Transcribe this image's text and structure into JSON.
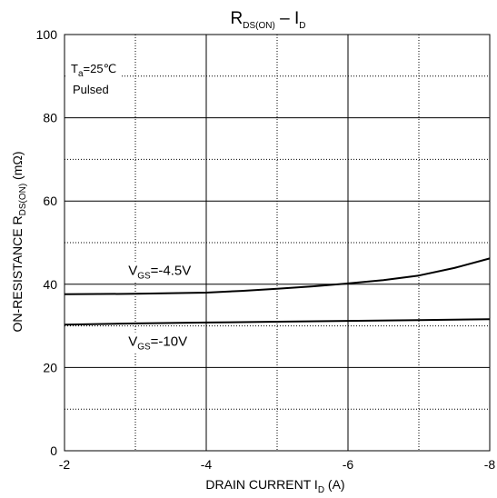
{
  "chart_data": {
    "type": "line",
    "title": {
      "main": "R",
      "sub": "DS(ON)",
      "sep": " – I",
      "sub2": "D"
    },
    "xlabel": {
      "main": "DRAIN CURRENT I",
      "sub": "D",
      "tail": " (A)"
    },
    "ylabel": {
      "main": "ON-RESISTANCE R",
      "sub": "DS(ON)",
      "tail": " (mΩ)"
    },
    "xlim": [
      -2,
      -8
    ],
    "ylim": [
      0,
      100
    ],
    "x_ticks": [
      -2,
      -4,
      -6,
      -8
    ],
    "y_ticks": [
      0,
      20,
      40,
      60,
      80,
      100
    ],
    "x_minor_dotted": [
      -3,
      -5,
      -7
    ],
    "y_minor_dotted": [
      10,
      30,
      50,
      70,
      90
    ],
    "grid": true,
    "annotations": {
      "condition_temp": {
        "main": "T",
        "sub": "a",
        "tail": "=25℃"
      },
      "condition_mode": "Pulsed"
    },
    "series": [
      {
        "name": {
          "main": "V",
          "sub": "GS",
          "tail": "=-4.5V"
        },
        "x": [
          -2,
          -3,
          -4,
          -4.5,
          -5,
          -5.5,
          -6,
          -6.5,
          -7,
          -7.5,
          -8
        ],
        "y": [
          37.6,
          37.7,
          38.0,
          38.4,
          38.9,
          39.5,
          40.2,
          41.0,
          42.1,
          43.9,
          46.2
        ],
        "label_x": -2.9,
        "label_y": 42.2
      },
      {
        "name": {
          "main": "V",
          "sub": "GS",
          "tail": "=-10V"
        },
        "x": [
          -2,
          -3,
          -4,
          -5,
          -6,
          -7,
          -8
        ],
        "y": [
          30.3,
          30.6,
          30.8,
          31.0,
          31.2,
          31.4,
          31.6
        ],
        "label_x": -2.9,
        "label_y": 25.2
      }
    ]
  }
}
